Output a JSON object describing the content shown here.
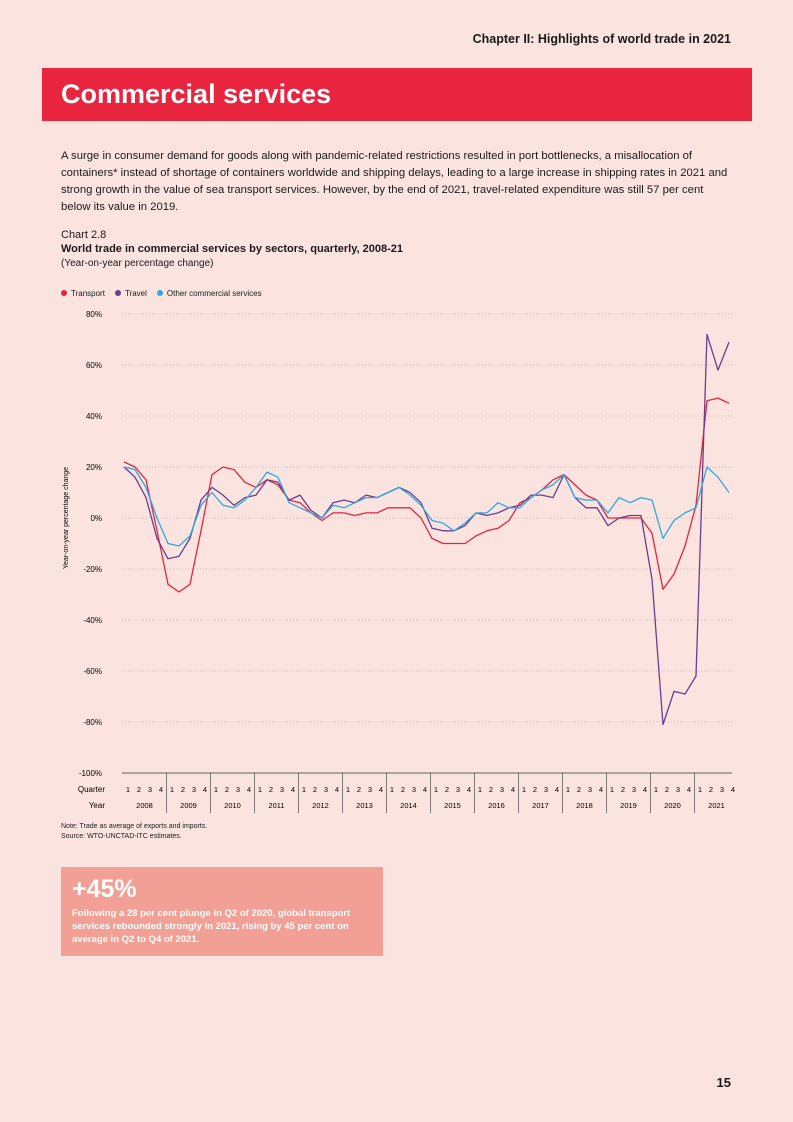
{
  "header": {
    "chapter": "Chapter II: Highlights of world trade in 2021"
  },
  "banner": {
    "title": "Commercial services"
  },
  "intro": "A surge in consumer demand for goods along with pandemic-related restrictions resulted in port bottlenecks, a misallocation of containers* instead of shortage of containers worldwide and shipping delays, leading to a large increase in shipping rates in 2021 and strong growth in the value of sea transport services. However, by the end of 2021, travel-related expenditure was still 57 per cent below its value in 2019.",
  "chart_title": {
    "label": "Chart 2.8",
    "title": "World trade in commercial services by sectors, quarterly, 2008-21",
    "subtitle": "(Year-on-year percentage change)"
  },
  "chart_data": {
    "type": "line",
    "ylabel": "Year-on-year percentage change",
    "ylim": [
      -100,
      80
    ],
    "yticks": [
      "80%",
      "60%",
      "40%",
      "20%",
      "0%",
      "-20%",
      "-40%",
      "-60%",
      "-80%",
      "-100%"
    ],
    "x_row_labels": {
      "quarter": "Quarter",
      "year": "Year"
    },
    "quarters": [
      "1",
      "2",
      "3",
      "4"
    ],
    "years": [
      "2008",
      "2009",
      "2010",
      "2011",
      "2012",
      "2013",
      "2014",
      "2015",
      "2016",
      "2017",
      "2018",
      "2019",
      "2020",
      "2021"
    ],
    "legend_position": "top-left",
    "series": [
      {
        "name": "Transport",
        "color": "#e0263e",
        "values": [
          22,
          20,
          15,
          -5,
          -26,
          -29,
          -26,
          -5,
          17,
          20,
          19,
          14,
          12,
          15,
          13,
          7,
          6,
          2,
          -1,
          2,
          2,
          1,
          2,
          2,
          4,
          4,
          4,
          0,
          -8,
          -10,
          -10,
          -10,
          -7,
          -5,
          -4,
          -1,
          6,
          8,
          11,
          15,
          17,
          13,
          9,
          7,
          0,
          0,
          0,
          0,
          -6,
          -28,
          -22,
          -11,
          5,
          46,
          47,
          45
        ]
      },
      {
        "name": "Travel",
        "color": "#6a3d8f",
        "values": [
          20,
          16,
          8,
          -8,
          -16,
          -15,
          -8,
          7,
          12,
          9,
          5,
          8,
          9,
          15,
          14,
          7,
          9,
          3,
          0,
          6,
          7,
          6,
          9,
          8,
          10,
          12,
          10,
          6,
          -4,
          -5,
          -5,
          -3,
          2,
          1,
          2,
          4,
          5,
          9,
          9,
          8,
          17,
          8,
          4,
          4,
          -3,
          0,
          1,
          1,
          -24,
          -81,
          -68,
          -69,
          -62,
          72,
          58,
          69
        ]
      },
      {
        "name": "Other commercial services",
        "color": "#2fa8dc",
        "values": [
          20,
          19,
          12,
          0,
          -10,
          -11,
          -7,
          5,
          10,
          5,
          4,
          7,
          12,
          18,
          16,
          6,
          4,
          2,
          0,
          5,
          4,
          6,
          8,
          8,
          10,
          12,
          9,
          5,
          -1,
          -2,
          -5,
          -2,
          2,
          2,
          6,
          4,
          4,
          8,
          11,
          13,
          17,
          8,
          7,
          7,
          2,
          8,
          6,
          8,
          7,
          -8,
          -1,
          2,
          4,
          20,
          16,
          10
        ]
      }
    ]
  },
  "notes": {
    "note": "Note: Trade as average of exports and imports.",
    "source": "Source: WTO-UNCTAD-ITC estimates."
  },
  "callout": {
    "value": "+45%",
    "text": "Following a 28 per cent plunge in Q2 of 2020, global transport services rebounded strongly in 2021, rising by 45 per cent on average in Q2 to Q4 of 2021."
  },
  "page_number": "15"
}
